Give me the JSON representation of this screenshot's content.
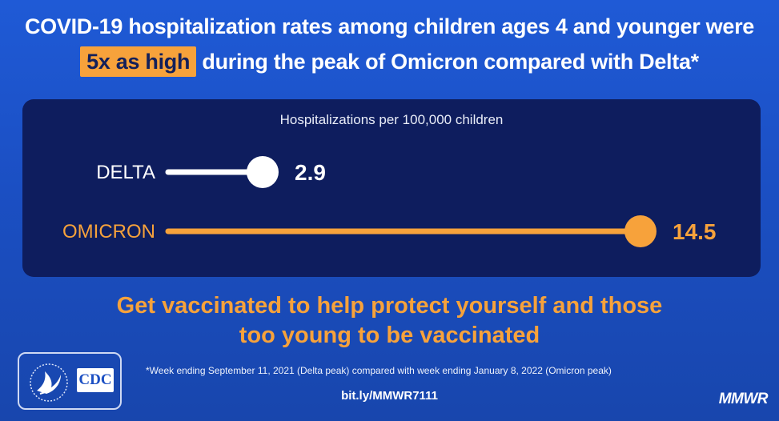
{
  "header": {
    "line1": "COVID-19 hospitalization rates among children ages 4 and younger were",
    "highlight": "5x as high",
    "line2_rest": " during the peak of Omicron compared with Delta*"
  },
  "colors": {
    "delta": "#ffffff",
    "omicron": "#f7a23b",
    "highlight_bg": "#f7a23b",
    "panel": "#0e1d5e"
  },
  "chart_data": {
    "type": "bar",
    "orientation": "horizontal",
    "style": "lollipop",
    "title": "Hospitalizations per 100,000 children",
    "categories": [
      "DELTA",
      "OMICRON"
    ],
    "values": [
      2.9,
      14.5
    ],
    "data_labels": [
      "2.9",
      "14.5"
    ],
    "xlim": [
      0,
      14.5
    ],
    "grid": false,
    "legend": "none"
  },
  "tagline": {
    "line1": "Get vaccinated to help protect yourself and those",
    "line2": "too young to be vaccinated"
  },
  "logo": {
    "text": "CDC",
    "icon": "hhs-eagle-icon"
  },
  "footnote": "*Week ending September 11, 2021 (Delta peak) compared with week ending January 8, 2022 (Omicron peak)",
  "link": "bit.ly/MMWR7111",
  "brand": "MMWR"
}
